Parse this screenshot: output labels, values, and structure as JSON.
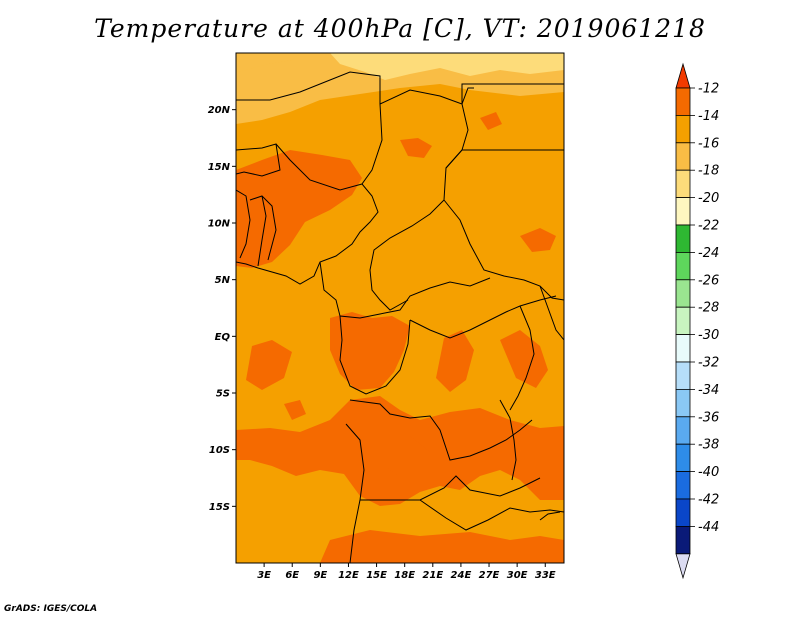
{
  "title": "Temperature at 400hPa [C], VT: 2019061218",
  "credit": "GrADS: IGES/COLA",
  "map": {
    "lon_range": [
      0,
      35
    ],
    "lat_range": [
      -20,
      25
    ],
    "x_tick_labels": [
      "3E",
      "6E",
      "9E",
      "12E",
      "15E",
      "18E",
      "21E",
      "24E",
      "27E",
      "30E",
      "33E"
    ],
    "y_tick_labels": [
      "20N",
      "15N",
      "10N",
      "5N",
      "EQ",
      "5S",
      "10S",
      "15S"
    ],
    "colors": {
      "band_12_14": "#f56a00",
      "band_14_16": "#f5a000",
      "band_16_18": "#f9bd45",
      "band_18_20": "#fddc7a",
      "land_border": "#000000"
    }
  },
  "colorbar": {
    "labels": [
      "-12",
      "-14",
      "-16",
      "-18",
      "-20",
      "-22",
      "-24",
      "-26",
      "-28",
      "-30",
      "-32",
      "-34",
      "-36",
      "-38",
      "-40",
      "-42",
      "-44"
    ],
    "colors": [
      "#f56a00",
      "#f5a000",
      "#f9bd45",
      "#fddc7a",
      "#fef7c0",
      "#2eb832",
      "#5ed65c",
      "#9ae590",
      "#c8f5c0",
      "#e8fbfb",
      "#b6def9",
      "#8ac8f5",
      "#5aaaf0",
      "#2e8ce8",
      "#1a6ce0",
      "#0a46c8",
      "#0a1a78"
    ],
    "top_tip_color": "#f23a00",
    "bottom_tip_color": "#dcdcf2"
  }
}
